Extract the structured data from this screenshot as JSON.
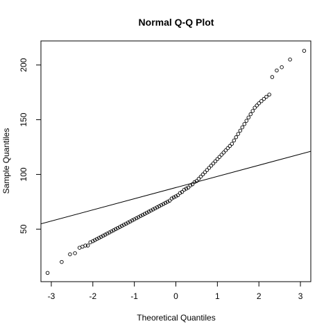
{
  "chart_data": {
    "type": "scatter",
    "title": "Normal Q-Q Plot",
    "xlabel": "Theoretical Quantiles",
    "ylabel": "Sample Quantiles",
    "xlim": [
      -3.25,
      3.25
    ],
    "ylim": [
      2,
      222
    ],
    "x_ticks": [
      -3,
      -2,
      -1,
      0,
      1,
      2,
      3
    ],
    "y_ticks": [
      50,
      100,
      150,
      200
    ],
    "grid": false,
    "marker": "open-circle",
    "reference_line": {
      "intercept": 88,
      "slope": 10.2
    },
    "points": [
      [
        -3.09,
        10
      ],
      [
        -2.75,
        20
      ],
      [
        -2.55,
        27
      ],
      [
        -2.43,
        28
      ],
      [
        -2.32,
        33
      ],
      [
        -2.25,
        34
      ],
      [
        -2.18,
        35
      ],
      [
        -2.12,
        35
      ],
      [
        -2.06,
        38
      ],
      [
        -2.0,
        39
      ],
      [
        -1.95,
        40
      ],
      [
        -1.9,
        41
      ],
      [
        -1.85,
        42
      ],
      [
        -1.8,
        43
      ],
      [
        -1.75,
        44
      ],
      [
        -1.7,
        45
      ],
      [
        -1.65,
        46
      ],
      [
        -1.6,
        47
      ],
      [
        -1.55,
        48
      ],
      [
        -1.5,
        49
      ],
      [
        -1.45,
        50
      ],
      [
        -1.4,
        51
      ],
      [
        -1.35,
        52
      ],
      [
        -1.3,
        53
      ],
      [
        -1.25,
        54
      ],
      [
        -1.2,
        55
      ],
      [
        -1.15,
        56
      ],
      [
        -1.1,
        57
      ],
      [
        -1.05,
        58
      ],
      [
        -1.0,
        59
      ],
      [
        -0.95,
        60
      ],
      [
        -0.9,
        61
      ],
      [
        -0.85,
        62
      ],
      [
        -0.8,
        63
      ],
      [
        -0.75,
        64
      ],
      [
        -0.7,
        65
      ],
      [
        -0.65,
        66
      ],
      [
        -0.6,
        67
      ],
      [
        -0.55,
        68
      ],
      [
        -0.5,
        69
      ],
      [
        -0.45,
        70
      ],
      [
        -0.4,
        71
      ],
      [
        -0.35,
        72
      ],
      [
        -0.3,
        73
      ],
      [
        -0.25,
        74
      ],
      [
        -0.2,
        75
      ],
      [
        -0.15,
        76
      ],
      [
        -0.1,
        78
      ],
      [
        -0.05,
        79
      ],
      [
        0.0,
        80
      ],
      [
        0.05,
        81
      ],
      [
        0.1,
        83
      ],
      [
        0.15,
        84
      ],
      [
        0.2,
        86
      ],
      [
        0.25,
        87
      ],
      [
        0.3,
        88
      ],
      [
        0.35,
        90
      ],
      [
        0.4,
        91
      ],
      [
        0.45,
        93
      ],
      [
        0.5,
        94
      ],
      [
        0.55,
        96
      ],
      [
        0.6,
        98
      ],
      [
        0.65,
        100
      ],
      [
        0.7,
        102
      ],
      [
        0.75,
        104
      ],
      [
        0.8,
        106
      ],
      [
        0.85,
        108
      ],
      [
        0.9,
        110
      ],
      [
        0.95,
        112
      ],
      [
        1.0,
        114
      ],
      [
        1.05,
        116
      ],
      [
        1.1,
        118
      ],
      [
        1.15,
        120
      ],
      [
        1.2,
        122
      ],
      [
        1.25,
        124
      ],
      [
        1.3,
        126
      ],
      [
        1.35,
        128
      ],
      [
        1.4,
        131
      ],
      [
        1.45,
        134
      ],
      [
        1.5,
        137
      ],
      [
        1.55,
        140
      ],
      [
        1.6,
        143
      ],
      [
        1.65,
        146
      ],
      [
        1.7,
        149
      ],
      [
        1.75,
        152
      ],
      [
        1.8,
        155
      ],
      [
        1.85,
        158
      ],
      [
        1.9,
        161
      ],
      [
        1.95,
        163
      ],
      [
        2.0,
        165
      ],
      [
        2.06,
        167
      ],
      [
        2.12,
        169
      ],
      [
        2.18,
        171
      ],
      [
        2.25,
        173
      ],
      [
        2.32,
        189
      ],
      [
        2.43,
        195
      ],
      [
        2.55,
        198
      ],
      [
        2.75,
        205
      ],
      [
        3.09,
        213
      ]
    ]
  }
}
